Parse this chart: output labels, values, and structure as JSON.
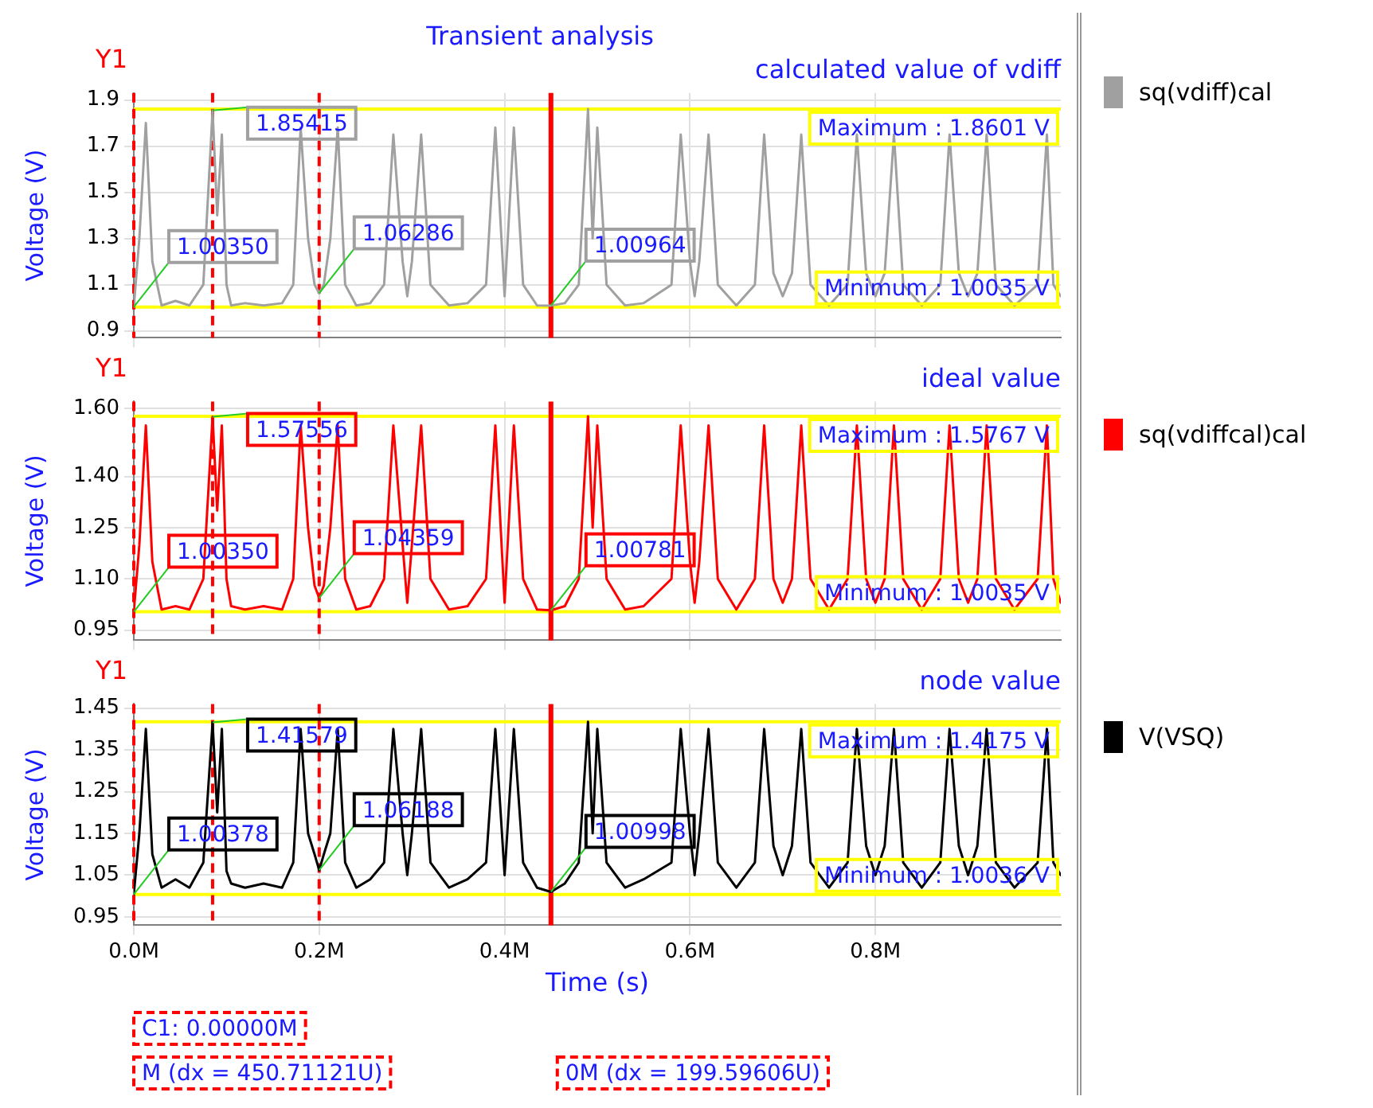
{
  "chart_data": [
    {
      "type": "line",
      "title": "Transient analysis",
      "subtitle": "calculated value of vdiff",
      "ylabel": "Voltage (V)",
      "legend": "right",
      "grid": true,
      "tick_labels": "y",
      "xlim": [
        0,
        1.0
      ],
      "xticks": [
        {
          "value": 0,
          "label": null
        },
        {
          "value": 0.2,
          "label": null
        },
        {
          "value": 0.4,
          "label": null
        },
        {
          "value": 0.6,
          "label": null
        },
        {
          "value": 0.8,
          "label": null
        }
      ],
      "ylim": [
        0.87,
        1.93
      ],
      "yticks": [
        {
          "value": 0.9,
          "label": "0.9"
        },
        {
          "value": 1.1,
          "label": "1.1"
        },
        {
          "value": 1.3,
          "label": "1.3"
        },
        {
          "value": 1.5,
          "label": "1.5"
        },
        {
          "value": 1.7,
          "label": "1.7"
        },
        {
          "value": 1.9,
          "label": "1.9"
        }
      ],
      "x": [
        0,
        0.006,
        0.013,
        0.02,
        0.03,
        0.045,
        0.06,
        0.075,
        0.085,
        0.09,
        0.095,
        0.1,
        0.105,
        0.12,
        0.14,
        0.16,
        0.172,
        0.18,
        0.188,
        0.195,
        0.2,
        0.205,
        0.212,
        0.22,
        0.228,
        0.24,
        0.255,
        0.27,
        0.28,
        0.29,
        0.295,
        0.3,
        0.31,
        0.32,
        0.34,
        0.36,
        0.38,
        0.39,
        0.4,
        0.41,
        0.42,
        0.435,
        0.45,
        0.465,
        0.48,
        0.49,
        0.495,
        0.5,
        0.51,
        0.53,
        0.55,
        0.58,
        0.59,
        0.6,
        0.605,
        0.61,
        0.62,
        0.63,
        0.65,
        0.67,
        0.68,
        0.69,
        0.7,
        0.71,
        0.72,
        0.73,
        0.75,
        0.77,
        0.78,
        0.79,
        0.8,
        0.81,
        0.82,
        0.83,
        0.85,
        0.87,
        0.88,
        0.89,
        0.9,
        0.91,
        0.92,
        0.93,
        0.95,
        0.975,
        0.985,
        0.992,
        1.0
      ],
      "series": [
        {
          "name": "sq(vdiff)cal",
          "color": "#a0a0a0",
          "values": [
            1.0035,
            1.3,
            1.8,
            1.2,
            1.01,
            1.03,
            1.01,
            1.1,
            1.85415,
            1.4,
            1.75,
            1.1,
            1.01,
            1.02,
            1.01,
            1.02,
            1.1,
            1.78,
            1.3,
            1.1,
            1.06286,
            1.1,
            1.3,
            1.78,
            1.1,
            1.01,
            1.02,
            1.1,
            1.75,
            1.2,
            1.05,
            1.2,
            1.75,
            1.1,
            1.01,
            1.02,
            1.1,
            1.78,
            1.05,
            1.78,
            1.1,
            1.01,
            1.00964,
            1.02,
            1.1,
            1.8601,
            1.3,
            1.78,
            1.1,
            1.01,
            1.02,
            1.1,
            1.75,
            1.2,
            1.05,
            1.2,
            1.75,
            1.1,
            1.01,
            1.1,
            1.75,
            1.15,
            1.05,
            1.15,
            1.75,
            1.1,
            1.01,
            1.1,
            1.75,
            1.15,
            1.05,
            1.15,
            1.75,
            1.1,
            1.01,
            1.1,
            1.75,
            1.15,
            1.05,
            1.15,
            1.75,
            1.1,
            1.01,
            1.1,
            1.75,
            1.1,
            1.05
          ]
        }
      ],
      "ref_lines": [
        {
          "axis": "y",
          "value": 1.8601,
          "label": "Maximum : 1.8601 V",
          "color": "#ffff00"
        },
        {
          "axis": "y",
          "value": 1.0035,
          "label": "Minimum : 1.0035 V",
          "color": "#ffff00"
        },
        {
          "axis": "x",
          "value": 0,
          "color": "#ff0000",
          "line_style": "dashed"
        },
        {
          "axis": "x",
          "value": 0.085,
          "color": "#ff0000",
          "line_style": "dashed"
        },
        {
          "axis": "x",
          "value": 0.2,
          "color": "#ff0000",
          "line_style": "dashed"
        },
        {
          "axis": "x",
          "value": 0.45,
          "color": "#ff0000",
          "line_style": "solid"
        }
      ],
      "annotations": [
        "Y1",
        {
          "text": "1.85415",
          "x": 0.085,
          "y": 1.85415
        },
        {
          "text": "1.00350",
          "x": 0,
          "y": 1.0035
        },
        {
          "text": "1.06286",
          "x": 0.2,
          "y": 1.06286
        },
        {
          "text": "1.00964",
          "x": 0.45,
          "y": 1.00964
        }
      ]
    },
    {
      "type": "line",
      "subtitle": "ideal value",
      "ylabel": "Voltage (V)",
      "legend": "right",
      "grid": true,
      "tick_labels": "y",
      "xlim": [
        0,
        1.0
      ],
      "xticks": [
        {
          "value": 0,
          "label": null
        },
        {
          "value": 0.2,
          "label": null
        },
        {
          "value": 0.4,
          "label": null
        },
        {
          "value": 0.6,
          "label": null
        },
        {
          "value": 0.8,
          "label": null
        }
      ],
      "ylim": [
        0.92,
        1.62
      ],
      "yticks": [
        {
          "value": 0.95,
          "label": "0.95"
        },
        {
          "value": 1.1,
          "label": "1.10"
        },
        {
          "value": 1.25,
          "label": "1.25"
        },
        {
          "value": 1.4,
          "label": "1.40"
        },
        {
          "value": 1.6,
          "label": "1.60"
        }
      ],
      "x": [
        0,
        0.006,
        0.013,
        0.02,
        0.03,
        0.045,
        0.06,
        0.075,
        0.085,
        0.09,
        0.095,
        0.1,
        0.105,
        0.12,
        0.14,
        0.16,
        0.172,
        0.18,
        0.188,
        0.195,
        0.2,
        0.205,
        0.212,
        0.22,
        0.228,
        0.24,
        0.255,
        0.27,
        0.28,
        0.29,
        0.295,
        0.3,
        0.31,
        0.32,
        0.34,
        0.36,
        0.38,
        0.39,
        0.4,
        0.41,
        0.42,
        0.435,
        0.45,
        0.465,
        0.48,
        0.49,
        0.495,
        0.5,
        0.51,
        0.53,
        0.55,
        0.58,
        0.59,
        0.6,
        0.605,
        0.61,
        0.62,
        0.63,
        0.65,
        0.67,
        0.68,
        0.69,
        0.7,
        0.71,
        0.72,
        0.73,
        0.75,
        0.77,
        0.78,
        0.79,
        0.8,
        0.81,
        0.82,
        0.83,
        0.85,
        0.87,
        0.88,
        0.89,
        0.9,
        0.91,
        0.92,
        0.93,
        0.95,
        0.975,
        0.985,
        0.992,
        1.0
      ],
      "series": [
        {
          "name": "sq(vdiffcal)cal",
          "color": "#ff0000",
          "values": [
            1.0035,
            1.2,
            1.55,
            1.15,
            1.01,
            1.02,
            1.01,
            1.1,
            1.57556,
            1.3,
            1.55,
            1.1,
            1.02,
            1.01,
            1.02,
            1.01,
            1.1,
            1.55,
            1.25,
            1.08,
            1.04359,
            1.08,
            1.25,
            1.55,
            1.1,
            1.01,
            1.02,
            1.1,
            1.55,
            1.2,
            1.03,
            1.2,
            1.55,
            1.1,
            1.01,
            1.02,
            1.1,
            1.55,
            1.03,
            1.55,
            1.1,
            1.01,
            1.00781,
            1.02,
            1.1,
            1.5767,
            1.25,
            1.55,
            1.1,
            1.01,
            1.02,
            1.1,
            1.55,
            1.15,
            1.03,
            1.15,
            1.55,
            1.1,
            1.01,
            1.1,
            1.55,
            1.1,
            1.03,
            1.1,
            1.55,
            1.1,
            1.01,
            1.1,
            1.55,
            1.1,
            1.03,
            1.1,
            1.55,
            1.1,
            1.01,
            1.1,
            1.55,
            1.1,
            1.03,
            1.1,
            1.55,
            1.1,
            1.01,
            1.1,
            1.55,
            1.1,
            1.03
          ]
        }
      ],
      "ref_lines": [
        {
          "axis": "y",
          "value": 1.5767,
          "label": "Maximum : 1.5767 V",
          "color": "#ffff00"
        },
        {
          "axis": "y",
          "value": 1.0035,
          "label": "Minimum : 1.0035 V",
          "color": "#ffff00"
        },
        {
          "axis": "x",
          "value": 0,
          "color": "#ff0000",
          "line_style": "dashed"
        },
        {
          "axis": "x",
          "value": 0.085,
          "color": "#ff0000",
          "line_style": "dashed"
        },
        {
          "axis": "x",
          "value": 0.2,
          "color": "#ff0000",
          "line_style": "dashed"
        },
        {
          "axis": "x",
          "value": 0.45,
          "color": "#ff0000",
          "line_style": "solid"
        }
      ],
      "annotations": [
        "Y1",
        {
          "text": "1.57556",
          "x": 0.085,
          "y": 1.57556
        },
        {
          "text": "1.00350",
          "x": 0,
          "y": 1.0035
        },
        {
          "text": "1.04359",
          "x": 0.2,
          "y": 1.04359
        },
        {
          "text": "1.00781",
          "x": 0.45,
          "y": 1.00781
        }
      ]
    },
    {
      "type": "line",
      "subtitle": "node value",
      "xlabel": "Time (s)",
      "ylabel": "Voltage (V)",
      "legend": "right",
      "grid": true,
      "xlim": [
        0,
        1.0
      ],
      "xticks": [
        {
          "value": 0,
          "label": "0.0M"
        },
        {
          "value": 0.2,
          "label": "0.2M"
        },
        {
          "value": 0.4,
          "label": "0.4M"
        },
        {
          "value": 0.6,
          "label": "0.6M"
        },
        {
          "value": 0.8,
          "label": "0.8M"
        }
      ],
      "ylim": [
        0.93,
        1.46
      ],
      "yticks": [
        {
          "value": 0.95,
          "label": "0.95"
        },
        {
          "value": 1.05,
          "label": "1.05"
        },
        {
          "value": 1.15,
          "label": "1.15"
        },
        {
          "value": 1.25,
          "label": "1.25"
        },
        {
          "value": 1.35,
          "label": "1.35"
        },
        {
          "value": 1.45,
          "label": "1.45"
        }
      ],
      "x": [
        0,
        0.006,
        0.013,
        0.02,
        0.03,
        0.045,
        0.06,
        0.075,
        0.085,
        0.09,
        0.095,
        0.1,
        0.105,
        0.12,
        0.14,
        0.16,
        0.172,
        0.18,
        0.188,
        0.195,
        0.2,
        0.205,
        0.212,
        0.22,
        0.228,
        0.24,
        0.255,
        0.27,
        0.28,
        0.29,
        0.295,
        0.3,
        0.31,
        0.32,
        0.34,
        0.36,
        0.38,
        0.39,
        0.4,
        0.41,
        0.42,
        0.435,
        0.45,
        0.465,
        0.48,
        0.49,
        0.495,
        0.5,
        0.51,
        0.53,
        0.55,
        0.58,
        0.59,
        0.6,
        0.605,
        0.61,
        0.62,
        0.63,
        0.65,
        0.67,
        0.68,
        0.69,
        0.7,
        0.71,
        0.72,
        0.73,
        0.75,
        0.77,
        0.78,
        0.79,
        0.8,
        0.81,
        0.82,
        0.83,
        0.85,
        0.87,
        0.88,
        0.89,
        0.9,
        0.91,
        0.92,
        0.93,
        0.95,
        0.975,
        0.985,
        0.992,
        1.0
      ],
      "series": [
        {
          "name": "V(VSQ)",
          "color": "#000000",
          "values": [
            1.00378,
            1.15,
            1.4,
            1.1,
            1.02,
            1.04,
            1.02,
            1.08,
            1.41579,
            1.2,
            1.4,
            1.06,
            1.03,
            1.02,
            1.03,
            1.02,
            1.08,
            1.4,
            1.15,
            1.1,
            1.06188,
            1.1,
            1.15,
            1.4,
            1.08,
            1.02,
            1.04,
            1.08,
            1.4,
            1.15,
            1.05,
            1.15,
            1.4,
            1.08,
            1.02,
            1.04,
            1.08,
            1.4,
            1.05,
            1.4,
            1.08,
            1.02,
            1.00998,
            1.03,
            1.08,
            1.4175,
            1.15,
            1.4,
            1.08,
            1.02,
            1.04,
            1.08,
            1.4,
            1.15,
            1.05,
            1.15,
            1.4,
            1.08,
            1.02,
            1.08,
            1.4,
            1.12,
            1.05,
            1.12,
            1.4,
            1.08,
            1.02,
            1.08,
            1.4,
            1.12,
            1.05,
            1.12,
            1.4,
            1.08,
            1.02,
            1.08,
            1.4,
            1.12,
            1.05,
            1.12,
            1.4,
            1.08,
            1.02,
            1.08,
            1.4,
            1.08,
            1.05
          ]
        }
      ],
      "ref_lines": [
        {
          "axis": "y",
          "value": 1.4175,
          "label": "Maximum : 1.4175 V",
          "color": "#ffff00"
        },
        {
          "axis": "y",
          "value": 1.0036,
          "label": "Minimum : 1.0036 V",
          "color": "#ffff00"
        },
        {
          "axis": "x",
          "value": 0,
          "color": "#ff0000",
          "line_style": "dashed"
        },
        {
          "axis": "x",
          "value": 0.085,
          "color": "#ff0000",
          "line_style": "dashed"
        },
        {
          "axis": "x",
          "value": 0.2,
          "color": "#ff0000",
          "line_style": "dashed"
        },
        {
          "axis": "x",
          "value": 0.45,
          "color": "#ff0000",
          "line_style": "solid"
        }
      ],
      "annotations": [
        "Y1",
        {
          "text": "1.41579",
          "x": 0.085,
          "y": 1.41579
        },
        {
          "text": "1.00378",
          "x": 0,
          "y": 1.00378
        },
        {
          "text": "1.06188",
          "x": 0.2,
          "y": 1.06188
        },
        {
          "text": "1.00998",
          "x": 0.45,
          "y": 1.00998
        },
        "C1: 0.00000M",
        "M (dx = 450.71121U)",
        "0M (dx = 199.59606U)"
      ]
    }
  ]
}
